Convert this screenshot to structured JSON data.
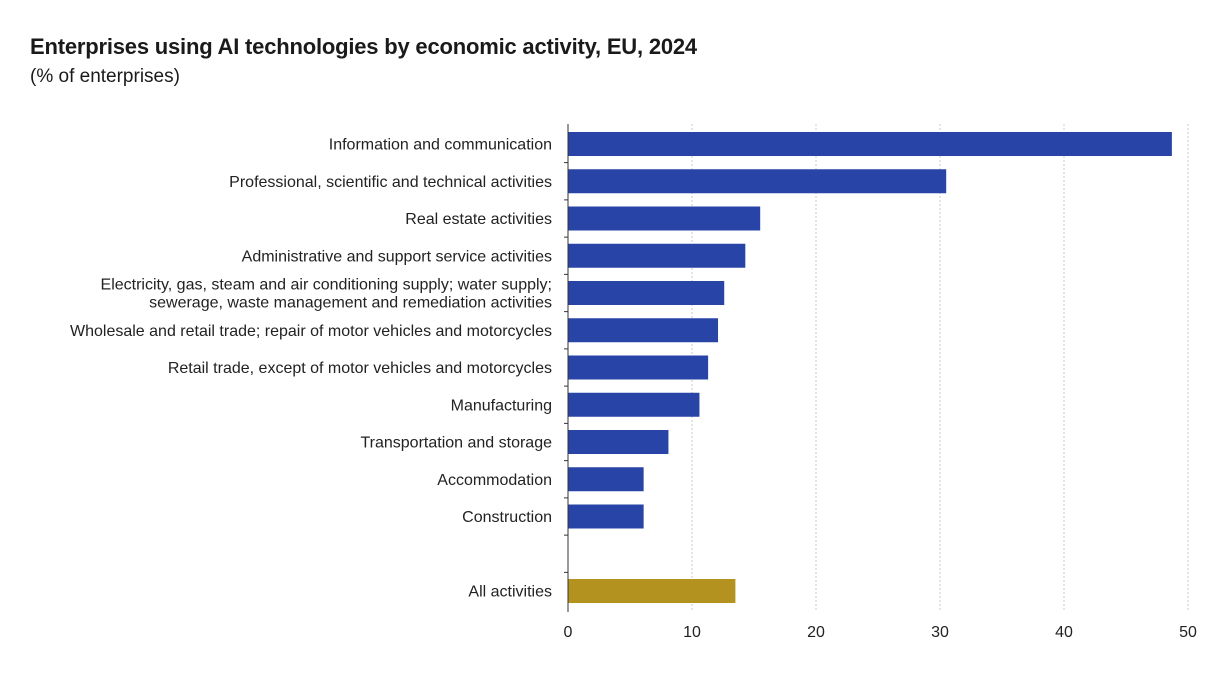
{
  "chart_data": {
    "type": "bar",
    "orientation": "horizontal",
    "title": "Enterprises using AI technologies by economic activity, EU, 2024",
    "subtitle": "(% of enterprises)",
    "categories": [
      [
        "Information and communication"
      ],
      [
        "Professional, scientific and technical activities"
      ],
      [
        "Real estate activities"
      ],
      [
        "Administrative and support service activities"
      ],
      [
        "Electricity, gas, steam and air conditioning supply; water supply;",
        "sewerage, waste management and remediation activities"
      ],
      [
        "Wholesale and retail trade; repair of motor vehicles and motorcycles"
      ],
      [
        "Retail trade, except of motor vehicles and motorcycles"
      ],
      [
        "Manufacturing"
      ],
      [
        "Transportation and storage"
      ],
      [
        "Accommodation"
      ],
      [
        "Construction"
      ],
      [],
      [
        "All activities"
      ]
    ],
    "values": [
      48.7,
      30.5,
      15.5,
      14.3,
      12.6,
      12.1,
      11.3,
      10.6,
      8.1,
      6.1,
      6.1,
      null,
      13.5
    ],
    "highlight_index": 12,
    "xlim": [
      0,
      50
    ],
    "xticks": [
      0,
      10,
      20,
      30,
      40,
      50
    ],
    "xlabel": "",
    "ylabel": "",
    "grid": true,
    "colors": {
      "bar": "#2944a7",
      "highlight": "#b39220",
      "grid": "#c8c8c8",
      "axis": "#333333"
    }
  }
}
